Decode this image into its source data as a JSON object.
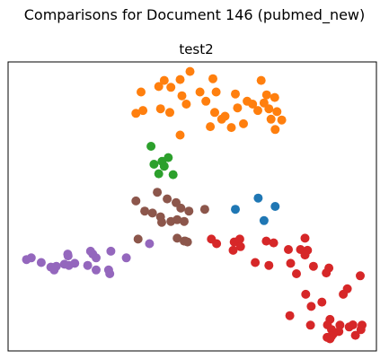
{
  "figure_title": "Comparisons for Document 146 (pubmed_new)",
  "chart_data": {
    "type": "scatter",
    "title": "test2",
    "xlabel": "",
    "ylabel": "",
    "xlim": [
      0,
      100
    ],
    "ylim": [
      0,
      100
    ],
    "grid": false,
    "axis_ticks": false,
    "series": [
      {
        "color": "#ff7f0e",
        "points": [
          [
            49.4,
            96.7
          ],
          [
            42.4,
            93.6
          ],
          [
            46.7,
            93.9
          ],
          [
            55.6,
            94.2
          ],
          [
            68.7,
            93.6
          ],
          [
            36.1,
            89.6
          ],
          [
            40.9,
            91.5
          ],
          [
            44.2,
            91.2
          ],
          [
            47.2,
            88.3
          ],
          [
            52.1,
            89.6
          ],
          [
            56.5,
            89.6
          ],
          [
            61.7,
            88.9
          ],
          [
            70.2,
            88.6
          ],
          [
            72.4,
            87.7
          ],
          [
            48.4,
            85.4
          ],
          [
            53.7,
            86.4
          ],
          [
            64.9,
            86.4
          ],
          [
            66.4,
            85.4
          ],
          [
            69.5,
            85.8
          ],
          [
            70.8,
            83.8
          ],
          [
            41.4,
            83.8
          ],
          [
            34.7,
            82.2
          ],
          [
            36.6,
            83.2
          ],
          [
            43.9,
            82.5
          ],
          [
            56.1,
            82.5
          ],
          [
            58.9,
            81.2
          ],
          [
            62.3,
            84.1
          ],
          [
            67.8,
            83.2
          ],
          [
            73.0,
            82.8
          ],
          [
            74.3,
            79.9
          ],
          [
            71.4,
            80.2
          ],
          [
            58.0,
            80.2
          ],
          [
            60.6,
            77.3
          ],
          [
            63.9,
            78.6
          ],
          [
            54.9,
            77.6
          ],
          [
            72.5,
            76.6
          ],
          [
            46.7,
            74.7
          ]
        ]
      },
      {
        "color": "#2ca02c",
        "points": [
          [
            38.8,
            70.8
          ],
          [
            43.5,
            66.9
          ],
          [
            41.8,
            65.6
          ],
          [
            39.6,
            64.6
          ],
          [
            42.4,
            63.9
          ],
          [
            40.9,
            61.3
          ],
          [
            44.8,
            61.0
          ]
        ]
      },
      {
        "color": "#1f77b4",
        "points": [
          [
            67.9,
            52.9
          ],
          [
            72.5,
            50.0
          ],
          [
            61.7,
            49.0
          ],
          [
            69.5,
            45.1
          ]
        ]
      },
      {
        "color": "#8c564b",
        "points": [
          [
            40.5,
            54.9
          ],
          [
            34.7,
            51.9
          ],
          [
            43.2,
            52.6
          ],
          [
            45.6,
            51.3
          ],
          [
            46.9,
            49.4
          ],
          [
            49.1,
            48.4
          ],
          [
            53.4,
            49.0
          ],
          [
            37.1,
            48.4
          ],
          [
            39.2,
            47.7
          ],
          [
            41.4,
            46.4
          ],
          [
            45.9,
            45.4
          ],
          [
            41.7,
            44.5
          ],
          [
            44.2,
            44.8
          ],
          [
            47.8,
            44.8
          ],
          [
            35.3,
            38.7
          ],
          [
            45.9,
            39.0
          ],
          [
            47.8,
            38.0
          ],
          [
            48.1,
            38.0
          ],
          [
            48.7,
            37.7
          ]
        ]
      },
      {
        "color": "#9467bd",
        "points": [
          [
            38.4,
            37.1
          ],
          [
            22.4,
            34.5
          ],
          [
            27.9,
            34.5
          ],
          [
            16.2,
            33.5
          ],
          [
            23.0,
            33.5
          ],
          [
            32.1,
            32.2
          ],
          [
            5.0,
            31.6
          ],
          [
            6.3,
            32.2
          ],
          [
            16.3,
            32.9
          ],
          [
            23.9,
            32.2
          ],
          [
            9.0,
            30.6
          ],
          [
            18.1,
            30.3
          ],
          [
            15.3,
            30.0
          ],
          [
            13.1,
            29.3
          ],
          [
            16.5,
            29.6
          ],
          [
            21.6,
            29.6
          ],
          [
            11.6,
            29.0
          ],
          [
            12.5,
            28.0
          ],
          [
            23.9,
            28.0
          ],
          [
            27.3,
            28.0
          ],
          [
            27.6,
            26.7
          ]
        ]
      },
      {
        "color": "#d62728",
        "points": [
          [
            55.2,
            38.7
          ],
          [
            61.4,
            37.7
          ],
          [
            62.9,
            38.7
          ],
          [
            70.1,
            38.0
          ],
          [
            72.1,
            37.4
          ],
          [
            80.6,
            39.0
          ],
          [
            56.6,
            37.1
          ],
          [
            63.1,
            36.1
          ],
          [
            61.1,
            34.8
          ],
          [
            76.1,
            35.1
          ],
          [
            79.4,
            35.1
          ],
          [
            81.3,
            34.8
          ],
          [
            80.6,
            33.2
          ],
          [
            67.1,
            30.6
          ],
          [
            70.8,
            29.6
          ],
          [
            76.7,
            30.3
          ],
          [
            82.9,
            29.3
          ],
          [
            87.1,
            28.7
          ],
          [
            78.3,
            26.7
          ],
          [
            86.4,
            27.0
          ],
          [
            95.6,
            26.0
          ],
          [
            92.1,
            21.5
          ],
          [
            80.8,
            19.6
          ],
          [
            91.0,
            19.6
          ],
          [
            85.2,
            16.9
          ],
          [
            82.3,
            15.4
          ],
          [
            76.5,
            12.2
          ],
          [
            87.4,
            10.9
          ],
          [
            86.7,
            9.0
          ],
          [
            82.1,
            8.9
          ],
          [
            90.1,
            8.9
          ],
          [
            93.6,
            9.0
          ],
          [
            96.1,
            8.9
          ],
          [
            92.6,
            8.3
          ],
          [
            95.8,
            7.4
          ],
          [
            87.8,
            7.4
          ],
          [
            89.8,
            6.7
          ],
          [
            88.3,
            5.9
          ],
          [
            87.8,
            5.1
          ],
          [
            94.3,
            5.4
          ],
          [
            86.6,
            4.7
          ],
          [
            87.4,
            4.2
          ]
        ]
      }
    ]
  }
}
